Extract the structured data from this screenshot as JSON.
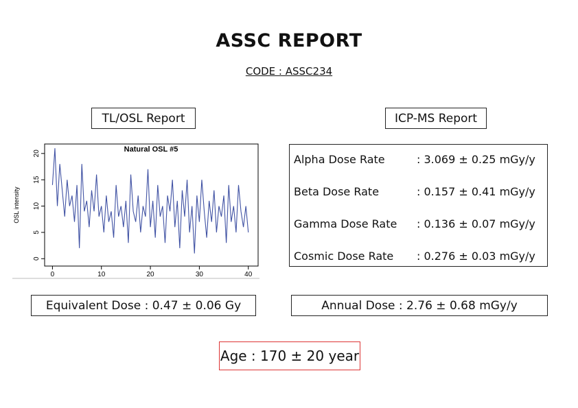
{
  "header": {
    "title": "ASSC REPORT",
    "code": "CODE : ASSC234"
  },
  "tl_osl": {
    "label": "TL/OSL Report",
    "equivalent_dose": "Equivalent Dose : 0.47 ± 0.06 Gy"
  },
  "chart_data": {
    "type": "line",
    "title": "Natural OSL #5",
    "ylabel": "OSL intensity",
    "x": [
      0,
      0.5,
      1,
      1.5,
      2,
      2.5,
      3,
      3.5,
      4,
      4.5,
      5,
      5.5,
      6,
      6.5,
      7,
      7.5,
      8,
      8.5,
      9,
      9.5,
      10,
      10.5,
      11,
      11.5,
      12,
      12.5,
      13,
      13.5,
      14,
      14.5,
      15,
      15.5,
      16,
      16.5,
      17,
      17.5,
      18,
      18.5,
      19,
      19.5,
      20,
      20.5,
      21,
      21.5,
      22,
      22.5,
      23,
      23.5,
      24,
      24.5,
      25,
      25.5,
      26,
      26.5,
      27,
      27.5,
      28,
      28.5,
      29,
      29.5,
      30,
      30.5,
      31,
      31.5,
      32,
      32.5,
      33,
      33.5,
      34,
      34.5,
      35,
      35.5,
      36,
      36.5,
      37,
      37.5,
      38,
      38.5,
      39,
      39.5,
      40
    ],
    "series": [
      {
        "color": "#3f51a3",
        "values": [
          14,
          21,
          10,
          18,
          13,
          8,
          15,
          10,
          12,
          7,
          14,
          2,
          18,
          9,
          11,
          6,
          13,
          9,
          16,
          8,
          10,
          5,
          12,
          7,
          9,
          4,
          14,
          8,
          10,
          6,
          11,
          3,
          16,
          9,
          7,
          12,
          5,
          10,
          8,
          17,
          6,
          11,
          4,
          14,
          8,
          10,
          3,
          12,
          9,
          15,
          6,
          11,
          2,
          13,
          8,
          15,
          5,
          10,
          1,
          12,
          7,
          15,
          9,
          4,
          11,
          7,
          13,
          5,
          10,
          8,
          12,
          3,
          14,
          7,
          10,
          5,
          14,
          9,
          6,
          10,
          5
        ]
      }
    ],
    "xlim": [
      -1.6,
      42
    ],
    "ylim": [
      -1.4,
      21.8
    ],
    "xticks": [
      0,
      10,
      20,
      30,
      40
    ],
    "yticks": [
      0,
      5,
      10,
      15,
      20
    ]
  },
  "icp_ms": {
    "label": "ICP-MS Report",
    "rows": [
      [
        "Alpha Dose Rate",
        ": 3.069 ± 0.25 mGy/y"
      ],
      [
        "Beta Dose Rate",
        ": 0.157 ± 0.41 mGy/y"
      ],
      [
        "Gamma Dose Rate",
        ": 0.136 ± 0.07 mGy/y"
      ],
      [
        "Cosmic Dose Rate",
        ": 0.276 ± 0.03 mGy/y"
      ]
    ],
    "annual_dose": "Annual Dose : 2.76 ± 0.68 mGy/y"
  },
  "age": "Age : 170 ± 20 year"
}
